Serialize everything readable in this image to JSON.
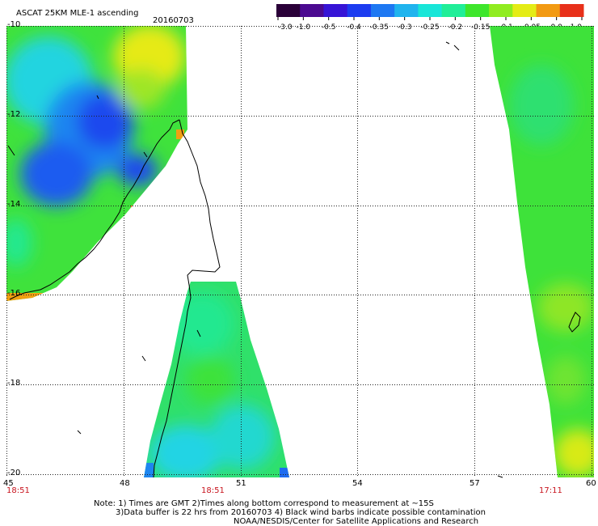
{
  "header": {
    "product": "ASCAT 25KM MLE-1 ascending",
    "date": "20160703"
  },
  "colorbar": {
    "labels": [
      "-3.0",
      "-1.0",
      "-0.5",
      "-0.4",
      "-0.35",
      "-0.3",
      "-0.25",
      "-0.2",
      "-0.15",
      "-0.1",
      "-0.05",
      "0.0",
      "1.0"
    ],
    "colors": [
      "#2a0038",
      "#4b0a90",
      "#3614d6",
      "#1c3cf0",
      "#1e78f2",
      "#20b4ee",
      "#18e6d8",
      "#20ee98",
      "#3ee62c",
      "#90ec20",
      "#e4ec16",
      "#f29a12",
      "#e8301a"
    ]
  },
  "axes": {
    "lat_labels": [
      "-10",
      "-12",
      "-14",
      "-16",
      "-18",
      "-20"
    ],
    "lon_labels": [
      "45",
      "48",
      "51",
      "54",
      "57",
      "60"
    ]
  },
  "times": [
    "18:51",
    "18:51",
    "17:11"
  ],
  "notes": [
    "Note: 1) Times are GMT 2)Times along bottom correspond to measurement at ~15S",
    "3)Data buffer is 22 hrs from 20160703 4) Black wind barbs indicate possible contamination",
    "NOAA/NESDIS/Center for Satellite Applications and Research"
  ],
  "map_colors": {
    "deep_blue": "#1c4cf0",
    "blue": "#2a86f0",
    "cyan": "#22d4e4",
    "aqua_green": "#22e890",
    "green": "#38e23a",
    "yellow_green": "#9ee626",
    "yellow": "#e6ea18",
    "orange": "#f0a012",
    "red_orange": "#ec5a14"
  }
}
